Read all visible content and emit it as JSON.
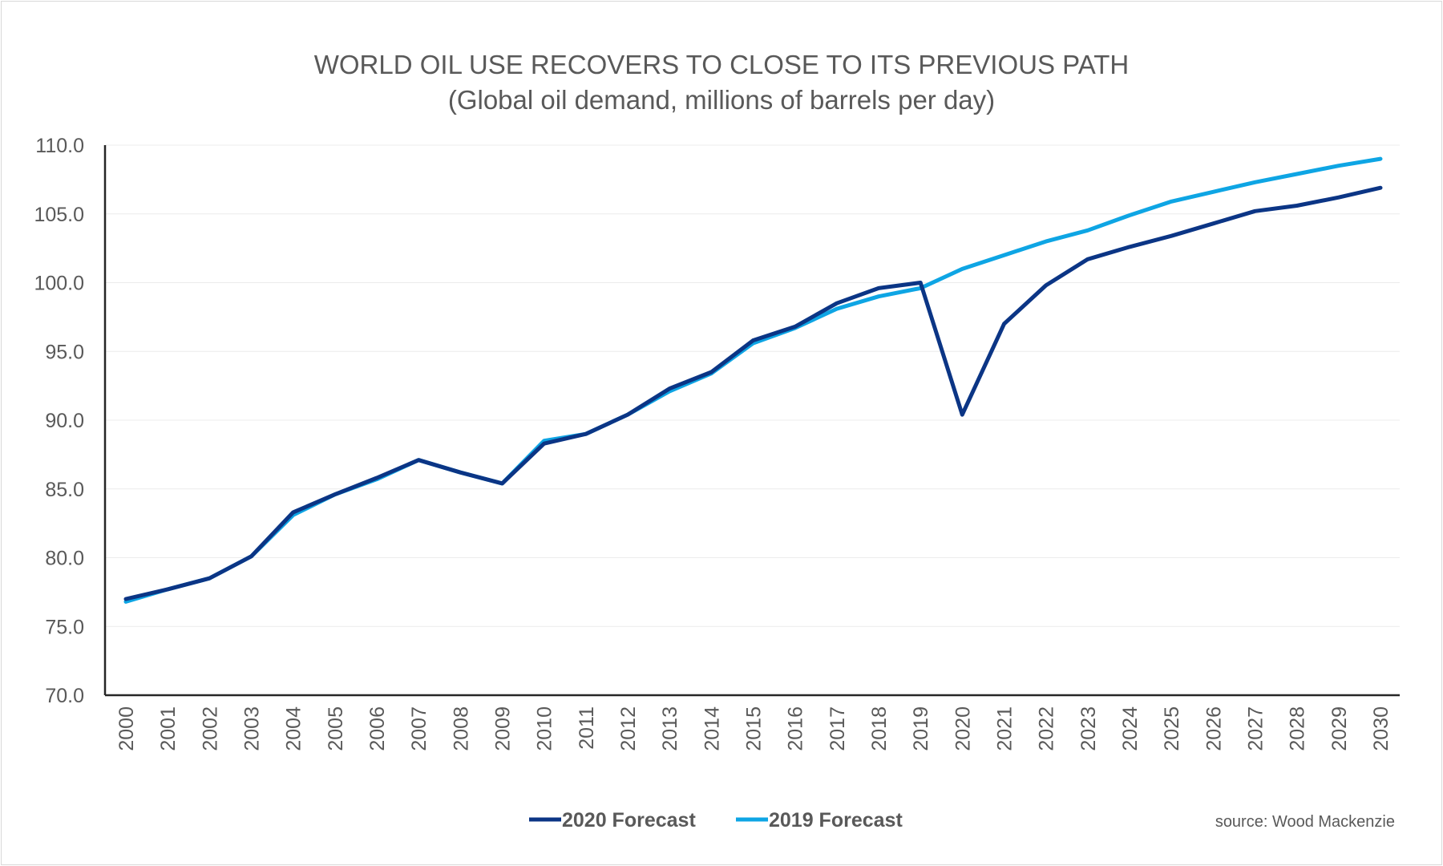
{
  "chart_data": {
    "type": "line",
    "title": "WORLD OIL USE RECOVERS TO CLOSE TO ITS PREVIOUS PATH",
    "subtitle": "(Global oil demand, millions of barrels per day)",
    "xlabel": "",
    "ylabel": "",
    "ylim": [
      70,
      110
    ],
    "yticks": [
      "70.0",
      "75.0",
      "80.0",
      "85.0",
      "90.0",
      "95.0",
      "100.0",
      "105.0",
      "110.0"
    ],
    "x": [
      2000,
      2001,
      2002,
      2003,
      2004,
      2005,
      2006,
      2007,
      2008,
      2009,
      2010,
      2011,
      2012,
      2013,
      2014,
      2015,
      2016,
      2017,
      2018,
      2019,
      2020,
      2021,
      2022,
      2023,
      2024,
      2025,
      2026,
      2027,
      2028,
      2029,
      2030
    ],
    "grid": "horizontal",
    "legend_placement": "bottom",
    "series": [
      {
        "name": "2020 Forecast",
        "color": "#0b3585",
        "values": [
          77.0,
          77.7,
          78.5,
          80.1,
          83.3,
          84.6,
          85.8,
          87.1,
          86.2,
          85.4,
          88.3,
          89.0,
          90.4,
          92.3,
          93.5,
          95.8,
          96.8,
          98.5,
          99.6,
          100.0,
          90.4,
          97.0,
          99.8,
          101.7,
          102.6,
          103.4,
          104.3,
          105.2,
          105.6,
          106.2,
          106.9
        ]
      },
      {
        "name": "2019 Forecast",
        "color": "#0ea5e4",
        "values": [
          76.8,
          77.7,
          78.5,
          80.1,
          83.1,
          84.6,
          85.7,
          87.1,
          86.2,
          85.4,
          88.5,
          89.0,
          90.4,
          92.1,
          93.4,
          95.6,
          96.7,
          98.1,
          99.0,
          99.6,
          101.0,
          102.0,
          103.0,
          103.8,
          104.9,
          105.9,
          106.6,
          107.3,
          107.9,
          108.5,
          109.0
        ]
      }
    ],
    "source": "source: Wood Mackenzie"
  }
}
